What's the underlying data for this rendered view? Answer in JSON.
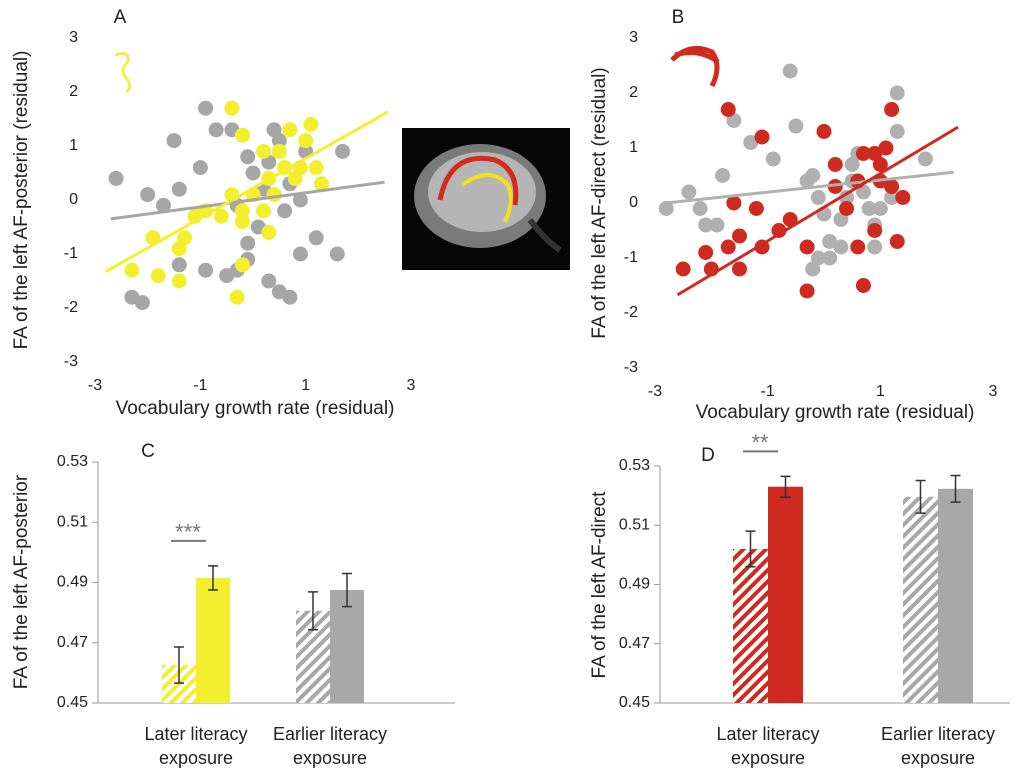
{
  "chart_data": [
    {
      "type": "scatter",
      "panel": "A",
      "xlabel": "Vocabulary growth rate (residual)",
      "ylabel": "FA of the left AF-posterior (residual)",
      "xlim": [
        -3,
        3
      ],
      "xticks": [
        -3,
        -1,
        1,
        3
      ],
      "ylim": [
        -3,
        3
      ],
      "yticks": [
        -3,
        -2,
        -1,
        0,
        1,
        2,
        3
      ],
      "series": [
        {
          "color": "#a6a6a6",
          "x": [
            -2.6,
            -2.0,
            -1.7,
            -1.5,
            -1.4,
            -0.9,
            -0.7,
            -0.4,
            -1.0,
            -0.3,
            -0.1,
            0.0,
            0.2,
            0.3,
            0.4,
            0.5,
            0.7,
            0.9,
            0.6,
            0.1,
            -0.1,
            -0.1,
            -0.3,
            -0.5,
            -0.9,
            -1.4,
            -2.3,
            -2.1,
            0.3,
            0.5,
            0.7,
            0.9,
            1.2,
            1.6,
            1.7,
            1.0
          ],
          "y": [
            0.4,
            0.1,
            -0.1,
            1.1,
            0.2,
            1.7,
            1.3,
            1.3,
            0.6,
            -0.1,
            0.8,
            0.5,
            0.2,
            0.7,
            1.3,
            1.1,
            0.3,
            0.0,
            -0.2,
            -0.5,
            -0.8,
            -1.1,
            -1.3,
            -1.4,
            -1.3,
            -1.2,
            -1.8,
            -1.9,
            -1.5,
            -1.7,
            -1.8,
            -1.0,
            -0.7,
            -1.0,
            0.9,
            0.9
          ],
          "fit": {
            "x": [
              -2.7,
              2.5
            ],
            "y": [
              -0.35,
              0.33
            ]
          }
        },
        {
          "color": "#f3ef2e",
          "x": [
            -0.4,
            -0.2,
            0.2,
            0.5,
            0.7,
            1.0,
            1.1,
            1.2,
            1.3,
            0.9,
            0.6,
            0.3,
            0.0,
            -0.2,
            -0.4,
            -0.6,
            -0.9,
            -1.1,
            -1.3,
            -1.4,
            -1.9,
            -2.3,
            -1.8,
            -1.4,
            -0.2,
            0.2,
            0.4,
            0.8,
            0.3,
            -0.2,
            -0.3
          ],
          "y": [
            1.7,
            1.2,
            0.9,
            0.9,
            1.3,
            1.1,
            1.4,
            0.6,
            0.3,
            0.6,
            0.6,
            0.4,
            0.1,
            -0.2,
            0.1,
            -0.3,
            -0.2,
            -0.3,
            -0.7,
            -0.9,
            -0.7,
            -1.3,
            -1.4,
            -1.5,
            -0.4,
            -0.2,
            0.1,
            0.4,
            -0.6,
            -1.2,
            -1.8
          ],
          "fit": {
            "x": [
              -2.8,
              2.56
            ],
            "y": [
              -1.33,
              1.63
            ]
          }
        }
      ]
    },
    {
      "type": "scatter",
      "panel": "B",
      "xlabel": "Vocabulary growth rate (residual)",
      "ylabel": "FA of the left AF-direct (residual)",
      "xlim": [
        -3,
        3
      ],
      "xticks": [
        -3,
        -1,
        1,
        3
      ],
      "ylim": [
        -3,
        3
      ],
      "yticks": [
        -3,
        -2,
        -1,
        0,
        1,
        2,
        3
      ],
      "series": [
        {
          "color": "#b0b0b0",
          "x": [
            -2.8,
            -2.4,
            -2.2,
            -2.1,
            -1.9,
            -1.8,
            -1.6,
            -1.3,
            -0.9,
            -0.6,
            -0.5,
            -0.3,
            -0.2,
            -0.1,
            0.0,
            0.1,
            -0.1,
            0.1,
            0.3,
            0.3,
            0.4,
            0.5,
            0.6,
            0.5,
            0.7,
            0.8,
            0.9,
            0.9,
            1.0,
            1.2,
            1.3,
            1.3,
            1.8,
            -0.2
          ],
          "y": [
            -0.1,
            0.2,
            -0.1,
            -0.4,
            -0.4,
            0.5,
            1.5,
            1.1,
            0.8,
            2.4,
            1.4,
            0.4,
            0.5,
            0.1,
            -0.2,
            -0.7,
            -1.0,
            -1.0,
            -0.8,
            -0.3,
            0.1,
            0.7,
            0.9,
            0.4,
            0.2,
            -0.1,
            -0.4,
            -0.8,
            -0.1,
            0.1,
            1.3,
            2.0,
            0.8,
            -1.2
          ],
          "fit": {
            "x": [
              -2.8,
              2.3
            ],
            "y": [
              0.0,
              0.56
            ]
          }
        },
        {
          "color": "#cf2a1f",
          "x": [
            -1.7,
            -1.1,
            -1.2,
            -1.6,
            -1.5,
            -1.7,
            -2.1,
            -2.0,
            -2.5,
            -1.5,
            -1.1,
            -0.8,
            -0.6,
            -0.3,
            -0.3,
            0.0,
            0.2,
            0.2,
            0.4,
            0.6,
            0.7,
            0.9,
            1.0,
            1.0,
            1.1,
            1.2,
            1.2,
            1.4,
            1.3,
            0.7,
            0.9,
            0.6
          ],
          "y": [
            1.7,
            1.2,
            -0.1,
            0.0,
            -0.6,
            -0.8,
            -0.9,
            -1.2,
            -1.2,
            -1.2,
            -0.8,
            -0.5,
            -0.3,
            -0.8,
            -1.6,
            1.3,
            0.7,
            0.3,
            -0.1,
            0.4,
            0.9,
            0.9,
            0.7,
            0.4,
            1.0,
            0.3,
            1.7,
            0.1,
            -0.7,
            -1.5,
            -0.5,
            -0.8
          ],
          "fit": {
            "x": [
              -2.6,
              2.38
            ],
            "y": [
              -1.67,
              1.38
            ]
          }
        }
      ]
    },
    {
      "type": "bar",
      "panel": "C",
      "ylabel": "FA of the left AF-posterior",
      "categories": [
        "Later literacy exposure",
        "Earlier literacy exposure"
      ],
      "ylim": [
        0.45,
        0.53
      ],
      "yticks": [
        0.45,
        0.47,
        0.49,
        0.51,
        0.53
      ],
      "annotation": "***",
      "series": [
        {
          "hatched": true,
          "colors": [
            "#f3ef2e",
            "#a8a8a8"
          ],
          "values": [
            0.4626,
            0.4806
          ],
          "errors": [
            0.006,
            0.0063
          ]
        },
        {
          "hatched": false,
          "colors": [
            "#f3ef2e",
            "#a8a8a8"
          ],
          "values": [
            0.4915,
            0.4875
          ],
          "errors": [
            0.004,
            0.0055
          ]
        }
      ]
    },
    {
      "type": "bar",
      "panel": "D",
      "ylabel": "FA of the left AF-direct",
      "categories": [
        "Later literacy exposure",
        "Earlier literacy exposure"
      ],
      "ylim": [
        0.45,
        0.53
      ],
      "yticks": [
        0.45,
        0.47,
        0.49,
        0.51,
        0.53
      ],
      "annotation": "**",
      "series": [
        {
          "hatched": true,
          "colors": [
            "#cf2a1f",
            "#a8a8a8"
          ],
          "values": [
            0.502,
            0.5196
          ],
          "errors": [
            0.006,
            0.0055
          ]
        },
        {
          "hatched": false,
          "colors": [
            "#cf2a1f",
            "#a8a8a8"
          ],
          "values": [
            0.523,
            0.5223
          ],
          "errors": [
            0.0035,
            0.0045
          ]
        }
      ]
    }
  ]
}
